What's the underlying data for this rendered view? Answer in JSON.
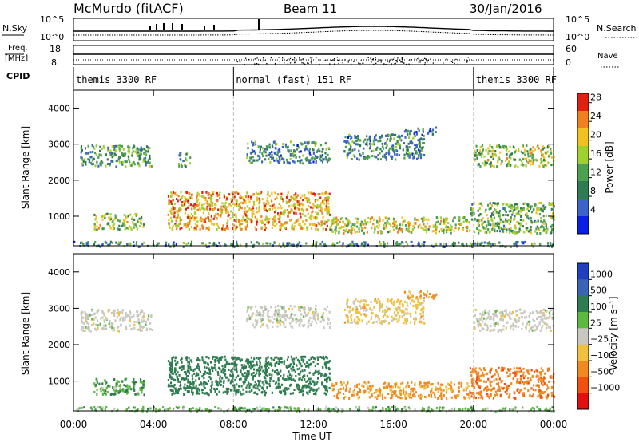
{
  "header": {
    "station": "McMurdo (fitACF)",
    "beam": "Beam 11",
    "date": "30/Jan/2016"
  },
  "noise_panel": {
    "left_label": "N.Sky",
    "right_label": "N.Search",
    "left_ticks": [
      "10^5",
      "10^0"
    ],
    "right_ticks": [
      "10^5",
      "10^0"
    ]
  },
  "freq_panel": {
    "left_label_line1": "Freq.",
    "left_label_line2": "[MHz]",
    "right_label": "Nave",
    "left_ticks": [
      "18",
      "8"
    ],
    "right_ticks": [
      "60",
      "0"
    ]
  },
  "cpid": {
    "label": "CPID",
    "segments": [
      {
        "text": "themis 3300 RF",
        "start_h": 0,
        "end_h": 8
      },
      {
        "text": "normal (fast) 151 RF",
        "start_h": 8,
        "end_h": 20
      },
      {
        "text": "themis 3300 RF",
        "start_h": 20,
        "end_h": 24
      }
    ]
  },
  "x_axis": {
    "label": "Time UT",
    "tick_labels": [
      "00:00",
      "04:00",
      "08:00",
      "12:00",
      "16:00",
      "20:00",
      "00:00"
    ],
    "tick_hours": [
      0,
      4,
      8,
      12,
      16,
      20,
      24
    ]
  },
  "chart_data": [
    {
      "type": "heatmap",
      "title": "",
      "ylabel": "Slant Range [km]",
      "xlabel": "",
      "xlim_hours": [
        0,
        24
      ],
      "ylim": [
        180,
        4500
      ],
      "yticks": [
        1000,
        2000,
        3000,
        4000
      ],
      "colorbar": {
        "label": "Power [dB]",
        "ticks": [
          "28",
          "24",
          "20",
          "16",
          "12",
          "8",
          "4"
        ],
        "tick_values": [
          28,
          24,
          20,
          16,
          12,
          8,
          4
        ],
        "range": [
          0,
          30
        ],
        "colors": [
          "#0a1ee6",
          "#3c64c8",
          "#2e7c50",
          "#4ca050",
          "#a0d030",
          "#f0c020",
          "#f08020",
          "#e02010"
        ]
      },
      "echo_regions": [
        {
          "t0": 0.3,
          "t1": 3.9,
          "r0": 2400,
          "r1": 3000,
          "value": 12
        },
        {
          "t0": 5.2,
          "t1": 5.8,
          "r0": 2400,
          "r1": 2800,
          "value": 10
        },
        {
          "t0": 8.6,
          "t1": 12.8,
          "r0": 2500,
          "r1": 3100,
          "value": 10
        },
        {
          "t0": 13.5,
          "t1": 17.5,
          "r0": 2600,
          "r1": 3300,
          "value": 10
        },
        {
          "t0": 16.5,
          "t1": 18.2,
          "r0": 3300,
          "r1": 3500,
          "value": 8
        },
        {
          "t0": 20.0,
          "t1": 24.0,
          "r0": 2400,
          "r1": 3000,
          "value": 16
        },
        {
          "t0": 1.0,
          "t1": 3.5,
          "r0": 650,
          "r1": 1100,
          "value": 16
        },
        {
          "t0": 4.7,
          "t1": 12.8,
          "r0": 650,
          "r1": 1700,
          "value": 22
        },
        {
          "t0": 12.8,
          "t1": 19.8,
          "r0": 550,
          "r1": 1000,
          "value": 18
        },
        {
          "t0": 19.8,
          "t1": 24.0,
          "r0": 550,
          "r1": 1400,
          "value": 14
        },
        {
          "t0": 0.0,
          "t1": 24.0,
          "r0": 180,
          "r1": 320,
          "value": 10
        }
      ]
    },
    {
      "type": "heatmap",
      "title": "",
      "ylabel": "Slant Range [km]",
      "xlabel": "Time UT",
      "xlim_hours": [
        0,
        24
      ],
      "ylim": [
        180,
        4500
      ],
      "yticks": [
        1000,
        2000,
        3000,
        4000
      ],
      "colorbar": {
        "label": "Velocity [m s⁻¹]",
        "ticks": [
          "1000",
          "500",
          "100",
          "25",
          "−25",
          "−100",
          "−500",
          "−1000"
        ],
        "tick_values": [
          1000,
          500,
          100,
          25,
          -25,
          -100,
          -500,
          -1000
        ],
        "colors": [
          "#2040c0",
          "#3c64b4",
          "#2e7c50",
          "#5cb840",
          "#c8c8c0",
          "#f0c040",
          "#f08a20",
          "#f05010",
          "#e01010"
        ]
      },
      "echo_regions": [
        {
          "t0": 0.3,
          "t1": 3.9,
          "r0": 2400,
          "r1": 3000,
          "value": 0
        },
        {
          "t0": 8.6,
          "t1": 12.8,
          "r0": 2500,
          "r1": 3100,
          "value": 0
        },
        {
          "t0": 13.5,
          "t1": 17.5,
          "r0": 2600,
          "r1": 3300,
          "value": -50
        },
        {
          "t0": 16.5,
          "t1": 18.2,
          "r0": 3300,
          "r1": 3500,
          "value": -100
        },
        {
          "t0": 20.0,
          "t1": 24.0,
          "r0": 2400,
          "r1": 3000,
          "value": 0
        },
        {
          "t0": 1.0,
          "t1": 3.5,
          "r0": 650,
          "r1": 1100,
          "value": 80
        },
        {
          "t0": 4.7,
          "t1": 12.8,
          "r0": 650,
          "r1": 1700,
          "value": 300
        },
        {
          "t0": 12.8,
          "t1": 19.8,
          "r0": 550,
          "r1": 1000,
          "value": -150
        },
        {
          "t0": 19.8,
          "t1": 24.0,
          "r0": 550,
          "r1": 1400,
          "value": -400
        },
        {
          "t0": 0.0,
          "t1": 24.0,
          "r0": 180,
          "r1": 320,
          "value": 60
        }
      ]
    }
  ]
}
